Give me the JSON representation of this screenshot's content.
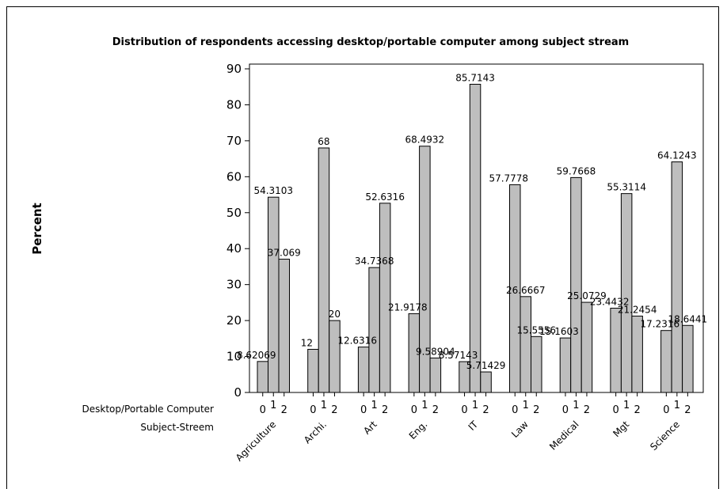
{
  "chart_data": {
    "type": "bar",
    "title": "Distribution of respondents accessing desktop/portable computer among subject stream",
    "ylabel": "Percent",
    "xlabel_rows": [
      "Desktop/Portable Computer",
      "Subject-Streem"
    ],
    "ylim": [
      0,
      90
    ],
    "yticks": [
      0,
      10,
      20,
      30,
      40,
      50,
      60,
      70,
      80,
      90
    ],
    "grid": false,
    "subcategories": [
      "0",
      "1",
      "2"
    ],
    "categories": [
      {
        "name": "Agriculture",
        "values": [
          8.62069,
          54.3103,
          37.069
        ],
        "labels": [
          "8.62069",
          "54.3103",
          "37.069"
        ]
      },
      {
        "name": "Archi.",
        "values": [
          12,
          68,
          20
        ],
        "labels": [
          "12",
          "68",
          "20"
        ]
      },
      {
        "name": "Art",
        "values": [
          12.6316,
          34.7368,
          52.6316
        ],
        "labels": [
          "12.6316",
          "34.7368",
          "52.6316"
        ]
      },
      {
        "name": "Eng.",
        "values": [
          21.9178,
          68.4932,
          9.58904
        ],
        "labels": [
          "21.9178",
          "68.4932",
          "9.58904"
        ]
      },
      {
        "name": "IT",
        "values": [
          8.57143,
          85.7143,
          5.71429
        ],
        "labels": [
          "8.57143",
          "85.7143",
          "5.71429"
        ]
      },
      {
        "name": "Law",
        "values": [
          57.7778,
          26.6667,
          15.5556
        ],
        "labels": [
          "57.7778",
          "26.6667",
          "15.5556"
        ]
      },
      {
        "name": "Medical",
        "values": [
          15.1603,
          59.7668,
          25.0729
        ],
        "labels": [
          "15.1603",
          "59.7668",
          "25.0729"
        ]
      },
      {
        "name": "Mgt",
        "values": [
          23.4432,
          55.3114,
          21.2454
        ],
        "labels": [
          "23.4432",
          "55.3114",
          "21.2454"
        ]
      },
      {
        "name": "Science",
        "values": [
          17.2316,
          64.1243,
          18.6441
        ],
        "labels": [
          "17.2316",
          "64.1243",
          "18.6441"
        ]
      }
    ]
  }
}
